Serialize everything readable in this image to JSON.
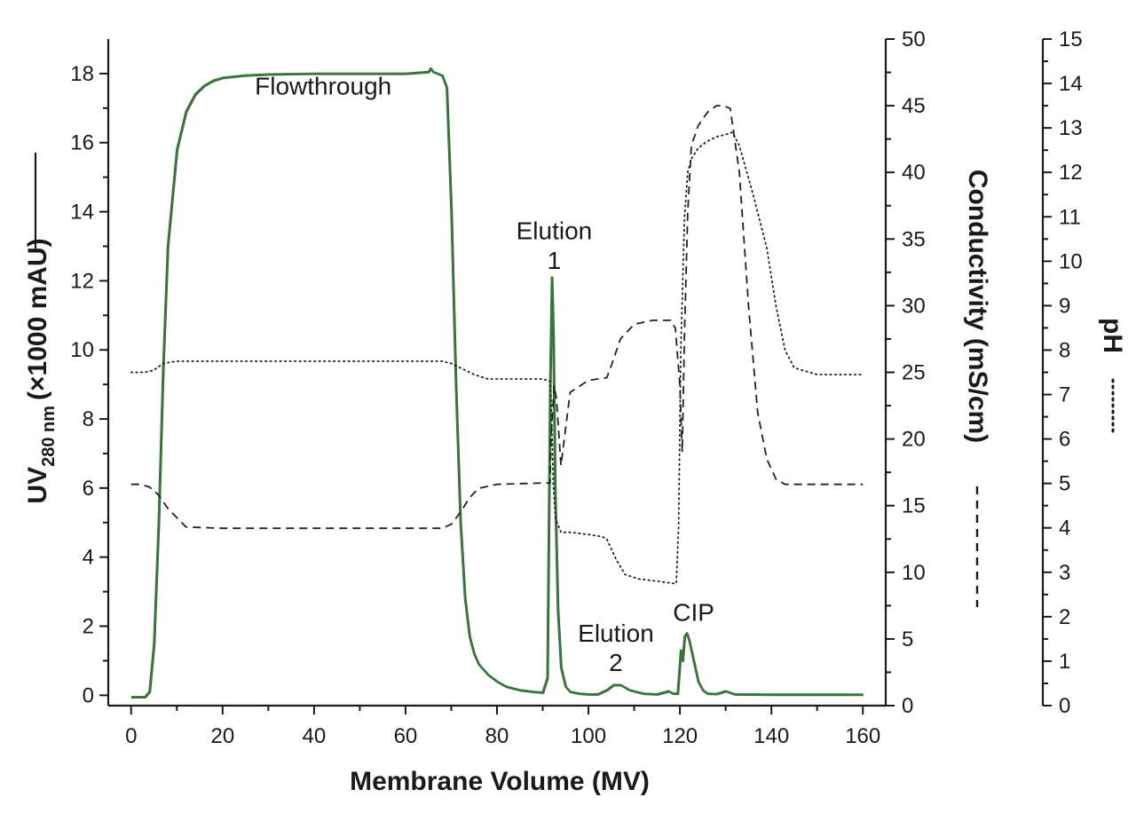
{
  "chart_data": {
    "type": "line",
    "xlabel": "Membrane Volume (MV)",
    "ylabel_left_prefix": "UV",
    "ylabel_left_sub": "280 nm",
    "ylabel_left_suffix": "(×1000 mAU)",
    "ylabel_right1": "Conductivity (mS/cm)",
    "ylabel_right2": "pH",
    "xlim": [
      -5,
      165
    ],
    "ylim_left": [
      -0.3,
      19
    ],
    "ylim_right1": [
      0,
      50
    ],
    "ylim_right2": [
      0,
      15
    ],
    "x_ticks": [
      0,
      20,
      40,
      60,
      80,
      100,
      120,
      140,
      160
    ],
    "y_left_ticks": [
      0,
      2,
      4,
      6,
      8,
      10,
      12,
      14,
      16,
      18
    ],
    "y_right1_ticks": [
      0,
      5,
      10,
      15,
      20,
      25,
      30,
      35,
      40,
      45,
      50
    ],
    "y_right2_ticks": [
      0,
      1,
      2,
      3,
      4,
      5,
      6,
      7,
      8,
      9,
      10,
      11,
      12,
      13,
      14,
      15
    ],
    "annotations": [
      {
        "text": "Flowthrough",
        "x": 42,
        "y": 17.4
      },
      {
        "text": "Elution",
        "x": 92.5,
        "y": 13.2
      },
      {
        "text": "1",
        "x": 92.5,
        "y": 12.35
      },
      {
        "text": "Elution",
        "x": 106,
        "y": 1.55
      },
      {
        "text": "2",
        "x": 106,
        "y": 0.7
      },
      {
        "text": "CIP",
        "x": 123,
        "y": 2.15
      }
    ],
    "series": [
      {
        "name": "UV 280 nm",
        "axis": "left",
        "style": "solid",
        "colors": [
          "#c0392b",
          "#1f4e9c",
          "#2e7d32"
        ],
        "x": [
          0,
          3,
          4,
          5,
          6,
          7,
          8,
          10,
          12,
          14,
          16,
          18,
          20,
          25,
          30,
          40,
          50,
          60,
          65,
          65.5,
          66,
          68,
          69,
          70,
          71,
          72,
          73,
          74,
          75,
          76,
          78,
          80,
          82,
          85,
          88,
          90,
          91,
          91.6,
          92,
          92.3,
          92.7,
          93.3,
          94,
          95,
          96,
          98,
          100,
          102,
          104,
          105.5,
          107,
          109,
          112,
          115,
          117.5,
          118.5,
          119.5,
          120.2,
          120.6,
          121,
          121.5,
          122,
          123,
          124,
          125,
          126,
          128,
          130,
          132,
          140,
          150,
          160
        ],
        "y": [
          -0.05,
          -0.05,
          0.1,
          1.5,
          5.0,
          9.5,
          13.0,
          15.8,
          16.9,
          17.4,
          17.65,
          17.8,
          17.88,
          17.95,
          17.98,
          18.0,
          18.0,
          18.0,
          18.05,
          18.15,
          18.05,
          17.95,
          17.6,
          14.0,
          9.0,
          5.0,
          2.8,
          1.7,
          1.2,
          0.9,
          0.6,
          0.4,
          0.25,
          0.15,
          0.1,
          0.08,
          0.5,
          9.0,
          12.1,
          10.5,
          6.0,
          2.5,
          0.8,
          0.25,
          0.1,
          0.05,
          0.03,
          0.03,
          0.15,
          0.3,
          0.3,
          0.15,
          0.05,
          0.03,
          0.12,
          0.05,
          0.05,
          1.3,
          1.0,
          1.7,
          1.8,
          1.6,
          1.0,
          0.4,
          0.15,
          0.05,
          0.04,
          0.12,
          0.03,
          0.02,
          0.02,
          0.02
        ]
      },
      {
        "name": "Conductivity",
        "axis": "right1",
        "style": "dashed",
        "color": "#222222",
        "x": [
          0,
          2,
          4,
          6,
          8,
          12,
          20,
          40,
          60,
          68,
          70,
          72,
          74,
          76,
          80,
          90,
          91.6,
          91.8,
          92.5,
          93,
          94,
          96,
          100,
          104,
          105,
          107,
          110,
          114,
          118,
          119,
          120,
          120.5,
          121,
          121.7,
          122.5,
          124,
          126,
          128,
          129.5,
          131,
          133,
          135,
          137,
          139,
          141,
          143,
          145,
          150,
          160
        ],
        "y": [
          16.6,
          16.6,
          16.4,
          15.8,
          14.8,
          13.4,
          13.3,
          13.3,
          13.3,
          13.3,
          13.6,
          14.5,
          15.6,
          16.3,
          16.6,
          16.7,
          16.7,
          20.0,
          24.0,
          23.0,
          18.0,
          23.5,
          24.4,
          24.6,
          25.5,
          27.5,
          28.6,
          28.9,
          28.9,
          28.3,
          24.0,
          19.0,
          28.0,
          37.0,
          42.0,
          43.5,
          44.5,
          45.0,
          45.0,
          44.8,
          40.0,
          30.0,
          22.0,
          18.5,
          17.0,
          16.6,
          16.6,
          16.6,
          16.6
        ]
      },
      {
        "name": "pH",
        "axis": "right2",
        "style": "dotted",
        "color": "#222222",
        "x": [
          0,
          3,
          5,
          7,
          10,
          20,
          40,
          60,
          68,
          70,
          72,
          75,
          78,
          80,
          90,
          91.6,
          91.8,
          92.3,
          92.8,
          94,
          96,
          100,
          103,
          104,
          106,
          108,
          111,
          115,
          118.5,
          119.2,
          119.7,
          120.2,
          121,
          121.7,
          122.5,
          124,
          126,
          128,
          130,
          131.5,
          133,
          136,
          139,
          141,
          143,
          145,
          150,
          160
        ],
        "y": [
          7.5,
          7.5,
          7.55,
          7.7,
          7.75,
          7.75,
          7.75,
          7.75,
          7.75,
          7.7,
          7.6,
          7.45,
          7.35,
          7.35,
          7.35,
          7.3,
          7.0,
          5.0,
          4.2,
          3.9,
          3.9,
          3.85,
          3.8,
          3.75,
          3.3,
          2.95,
          2.85,
          2.8,
          2.75,
          2.75,
          4.0,
          8.0,
          11.0,
          12.0,
          12.3,
          12.55,
          12.7,
          12.8,
          12.85,
          12.9,
          12.6,
          11.5,
          10.3,
          9.0,
          8.0,
          7.6,
          7.45,
          7.45
        ]
      }
    ]
  }
}
